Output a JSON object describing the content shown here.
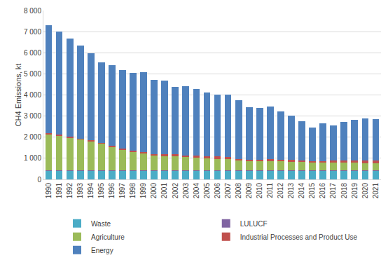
{
  "chart_data": {
    "type": "bar",
    "stacked": true,
    "y_label": "CH4 Emissions, kt",
    "categories": [
      "1990",
      "1991",
      "1992",
      "1993",
      "1994",
      "1995",
      "1996",
      "1997",
      "1998",
      "1999",
      "2000",
      "2001",
      "2002",
      "2003",
      "2004",
      "2005",
      "2006",
      "2007",
      "2008",
      "2009",
      "2010",
      "2011",
      "2012",
      "2013",
      "2014",
      "2015",
      "2016",
      "2017",
      "2018",
      "2019",
      "2020",
      "2021"
    ],
    "series": [
      {
        "name": "Waste",
        "color": "#4bacc6",
        "values": [
          420,
          420,
          420,
          420,
          420,
          420,
          420,
          420,
          420,
          420,
          420,
          420,
          420,
          420,
          420,
          420,
          420,
          420,
          420,
          420,
          420,
          420,
          420,
          420,
          420,
          420,
          420,
          420,
          420,
          420,
          420,
          420
        ]
      },
      {
        "name": "LULUCF",
        "color": "#8064a2",
        "values": [
          10,
          10,
          10,
          10,
          10,
          10,
          10,
          10,
          10,
          10,
          10,
          10,
          10,
          10,
          10,
          10,
          10,
          10,
          10,
          10,
          10,
          10,
          10,
          10,
          10,
          10,
          10,
          10,
          10,
          10,
          10,
          10
        ]
      },
      {
        "name": "Agriculture",
        "color": "#9bbb59",
        "values": [
          1720,
          1660,
          1550,
          1470,
          1390,
          1270,
          1130,
          990,
          890,
          820,
          720,
          680,
          670,
          620,
          590,
          550,
          530,
          520,
          470,
          440,
          430,
          430,
          430,
          410,
          390,
          370,
          360,
          370,
          360,
          360,
          350,
          330
        ]
      },
      {
        "name": "Industrial Processes and Product Use",
        "color": "#c0504d",
        "values": [
          40,
          40,
          40,
          40,
          40,
          40,
          40,
          40,
          40,
          40,
          60,
          70,
          80,
          90,
          100,
          110,
          120,
          120,
          70,
          60,
          80,
          90,
          80,
          80,
          70,
          70,
          70,
          80,
          110,
          120,
          130,
          130
        ]
      },
      {
        "name": "Energy",
        "color": "#4f81bd",
        "values": [
          5110,
          4870,
          4660,
          4400,
          4110,
          3820,
          3800,
          3730,
          3680,
          3790,
          3520,
          3500,
          3190,
          3260,
          3150,
          3010,
          2930,
          2940,
          2770,
          2490,
          2450,
          2490,
          2290,
          2090,
          1870,
          1590,
          1790,
          1680,
          1820,
          1910,
          1980,
          1980
        ]
      }
    ],
    "ylim": [
      0,
      8000
    ],
    "yticks": [
      0,
      {
        "value": 1000,
        "label": "1 000"
      },
      {
        "value": 2000,
        "label": "2 000"
      },
      {
        "value": 3000,
        "label": "3 000"
      },
      {
        "value": 4000,
        "label": "4 000"
      },
      {
        "value": 5000,
        "label": "5 000"
      },
      {
        "value": 6000,
        "label": "6 000"
      },
      {
        "value": 7000,
        "label": "7 000"
      },
      {
        "value": 8000,
        "label": "8 000"
      }
    ],
    "grid": true,
    "legend": "bottom"
  }
}
